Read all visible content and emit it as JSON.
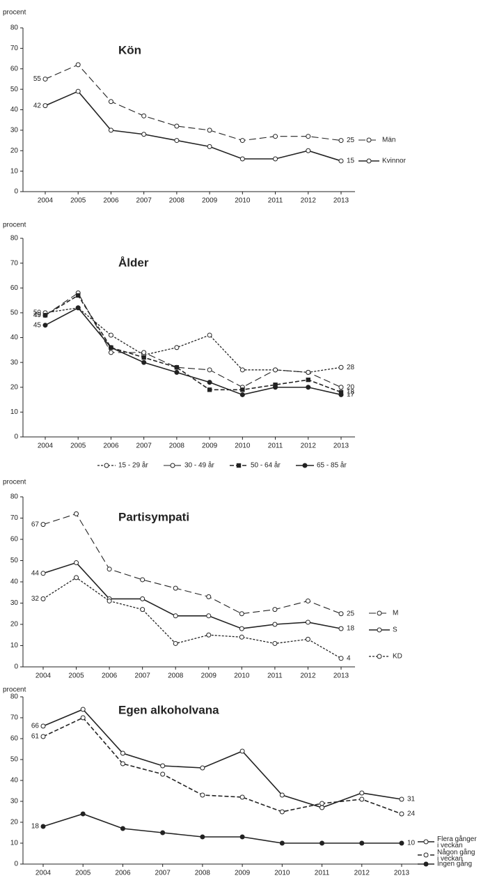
{
  "chart_data": [
    {
      "type": "line",
      "title": "Kön",
      "y_label": "procent",
      "categories": [
        "2004",
        "2005",
        "2006",
        "2007",
        "2008",
        "2009",
        "2010",
        "2011",
        "2012",
        "2013"
      ],
      "ylim": [
        0,
        80
      ],
      "yticks": [
        0,
        10,
        20,
        30,
        40,
        50,
        60,
        70,
        80
      ],
      "legend": "right",
      "series": [
        {
          "name": "Män",
          "color": "#222222",
          "line_style": "long-dashed",
          "marker": "open-circle",
          "values": [
            55,
            62,
            44,
            37,
            32,
            30,
            25,
            27,
            27,
            25
          ]
        },
        {
          "name": "Kvinnor",
          "color": "#222222",
          "line_style": "solid",
          "marker": "open-circle",
          "values": [
            42,
            49,
            30,
            28,
            25,
            22,
            16,
            16,
            20,
            15
          ]
        }
      ]
    },
    {
      "type": "line",
      "title": "Ålder",
      "y_label": "procent",
      "categories": [
        "2004",
        "2005",
        "2006",
        "2007",
        "2008",
        "2009",
        "2010",
        "2011",
        "2012",
        "2013"
      ],
      "ylim": [
        0,
        80
      ],
      "yticks": [
        0,
        10,
        20,
        30,
        40,
        50,
        60,
        70,
        80
      ],
      "legend": "bottom",
      "series": [
        {
          "name": "15 - 29 år",
          "color": "#222222",
          "line_style": "dotted",
          "marker": "open-circle",
          "values": [
            50,
            52,
            41,
            33,
            36,
            41,
            27,
            27,
            26,
            28
          ]
        },
        {
          "name": "30 - 49 år",
          "color": "#222222",
          "line_style": "long-dashed",
          "marker": "open-circle",
          "values": [
            49,
            58,
            34,
            34,
            28,
            27,
            20,
            27,
            26,
            20
          ]
        },
        {
          "name": "50 - 64 år",
          "color": "#222222",
          "line_style": "dashed",
          "marker": "filled-square",
          "values": [
            49,
            57,
            36,
            32,
            28,
            19,
            19,
            21,
            23,
            18
          ]
        },
        {
          "name": "65 - 85 år",
          "color": "#222222",
          "line_style": "solid",
          "marker": "filled-circle",
          "values": [
            45,
            52,
            36,
            30,
            26,
            22,
            17,
            20,
            20,
            17
          ]
        }
      ]
    },
    {
      "type": "line",
      "title": "Partisympati",
      "y_label": "procent",
      "categories": [
        "2004",
        "2005",
        "2006",
        "2007",
        "2008",
        "2009",
        "2010",
        "2011",
        "2012",
        "2013"
      ],
      "ylim": [
        0,
        80
      ],
      "yticks": [
        0,
        10,
        20,
        30,
        40,
        50,
        60,
        70,
        80
      ],
      "legend": "right",
      "series": [
        {
          "name": "M",
          "color": "#222222",
          "line_style": "long-dashed",
          "marker": "open-circle",
          "values": [
            67,
            72,
            46,
            41,
            37,
            33,
            25,
            27,
            31,
            25
          ]
        },
        {
          "name": "S",
          "color": "#222222",
          "line_style": "solid",
          "marker": "open-circle",
          "values": [
            44,
            49,
            32,
            32,
            24,
            24,
            18,
            20,
            21,
            18
          ]
        },
        {
          "name": "KD",
          "color": "#222222",
          "line_style": "dotted",
          "marker": "open-circle",
          "values": [
            32,
            42,
            31,
            27,
            11,
            15,
            14,
            11,
            13,
            4
          ]
        }
      ]
    },
    {
      "type": "line",
      "title": "Egen alkoholvana",
      "y_label": "procent",
      "categories": [
        "2004",
        "2005",
        "2006",
        "2007",
        "2008",
        "2009",
        "2010",
        "2011",
        "2012",
        "2013"
      ],
      "ylim": [
        0,
        80
      ],
      "yticks": [
        0,
        10,
        20,
        30,
        40,
        50,
        60,
        70,
        80
      ],
      "legend": "right",
      "series": [
        {
          "name": "Flera gånger i veckan",
          "color": "#222222",
          "line_style": "solid",
          "marker": "open-circle",
          "values": [
            66,
            74,
            53,
            47,
            46,
            54,
            33,
            27,
            34,
            31
          ]
        },
        {
          "name": "Någon gång i veckan",
          "color": "#222222",
          "line_style": "dashed",
          "marker": "open-circle",
          "values": [
            61,
            70,
            48,
            43,
            33,
            32,
            25,
            29,
            31,
            24
          ]
        },
        {
          "name": "Ingen gång",
          "color": "#222222",
          "line_style": "solid",
          "marker": "filled-circle",
          "values": [
            18,
            24,
            17,
            15,
            13,
            13,
            10,
            10,
            10,
            10
          ]
        }
      ]
    }
  ]
}
